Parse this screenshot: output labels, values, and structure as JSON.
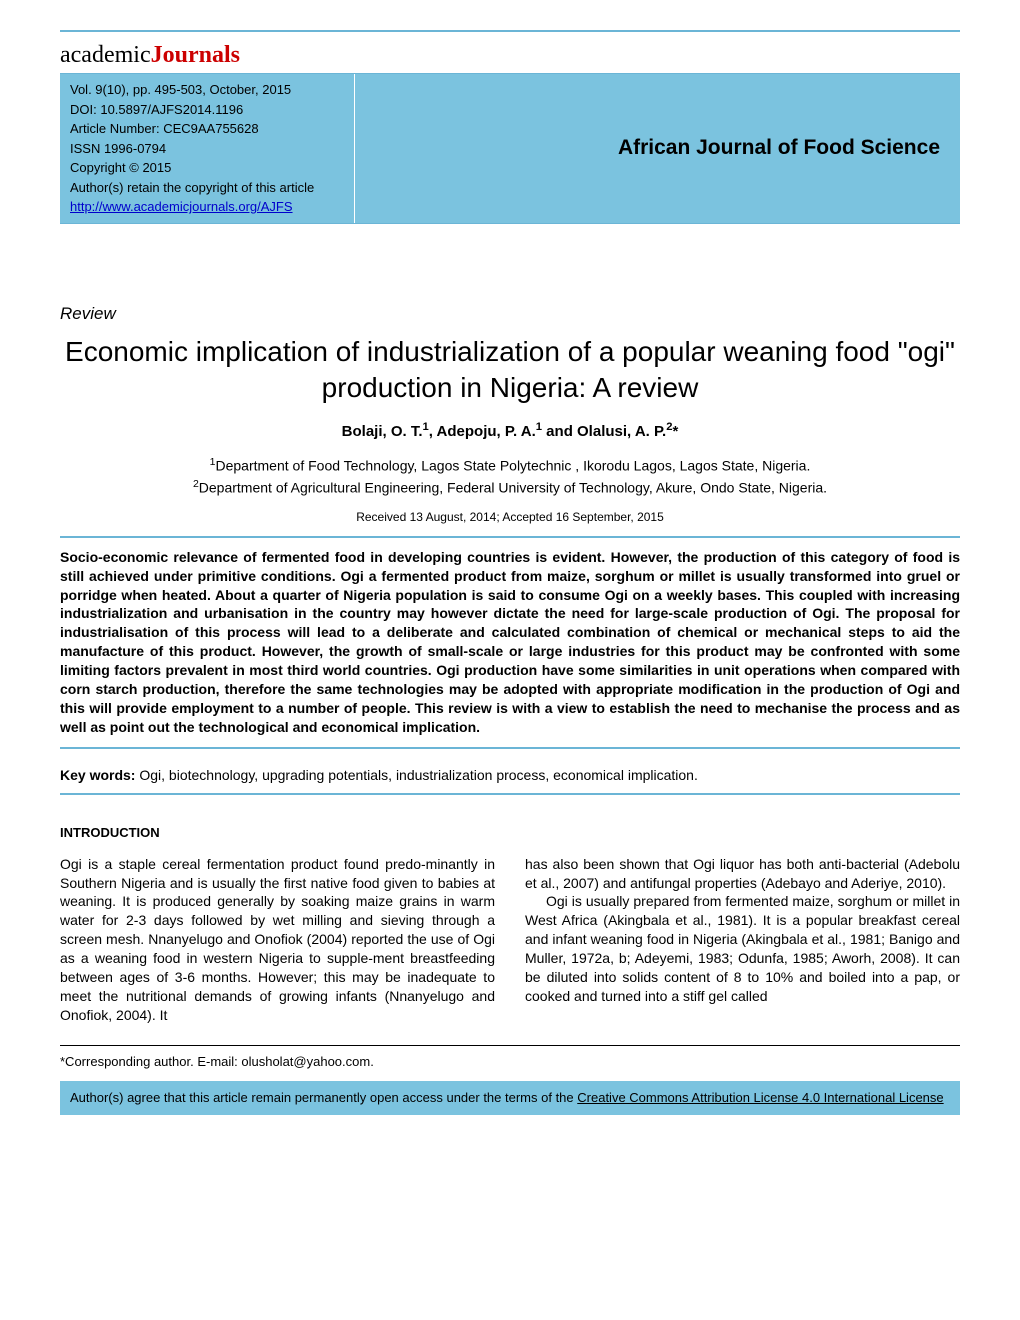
{
  "logo": {
    "part1": "academic",
    "part2": "Journals"
  },
  "meta": {
    "vol": "Vol. 9(10), pp. 495-503, October, 2015",
    "doi": "DOI: 10.5897/AJFS2014.1196",
    "article_number": "Article Number: CEC9AA755628",
    "issn": "ISSN 1996-0794",
    "copyright": "Copyright © 2015",
    "rights": "Author(s) retain the copyright of this article",
    "url": "http://www.academicjournals.org/AJFS"
  },
  "journal_title": "African Journal of Food Science",
  "article_type": "Review",
  "title": "Economic implication of industrialization of a popular weaning food \"ogi\" production in Nigeria: A review",
  "authors_html": "Bolaji, O. T.<sup>1</sup>, Adepoju, P. A.<sup>1</sup> and Olalusi, A. P.<sup>2</sup>*",
  "affil1": "<sup>1</sup>Department of Food Technology, Lagos State Polytechnic , Ikorodu Lagos, Lagos State, Nigeria.",
  "affil2": "<sup>2</sup>Department of Agricultural Engineering, Federal University of Technology, Akure, Ondo State, Nigeria.",
  "dates": "Received 13 August, 2014; Accepted 16 September, 2015",
  "abstract": "Socio-economic relevance of fermented food in developing countries is evident. However, the production of this category of food is still achieved under primitive conditions. Ogi a fermented product from maize, sorghum or millet is usually transformed into gruel or porridge when heated. About a quarter of Nigeria population is said to consume Ogi on a weekly bases. This coupled with increasing industrialization and urbanisation in the country may however dictate the need for large-scale production of Ogi. The proposal for industrialisation of this process will lead to a deliberate and calculated combination of chemical or mechanical steps to aid the manufacture of this product. However, the growth of small-scale or large industries for this product may be confronted with some limiting factors prevalent in most third world countries. Ogi production have some similarities in unit operations when compared with corn starch production, therefore the same technologies may be adopted with appropriate modification in the production of Ogi and this will provide employment to a number of people. This review is with a view to establish the need to mechanise the process and as well as point out the technological and economical implication.",
  "keywords_label": "Key words:",
  "keywords": " Ogi, biotechnology, upgrading potentials, industrialization process, economical implication.",
  "section_head": "INTRODUCTION",
  "col1": "Ogi is a staple cereal fermentation product found predo-minantly in Southern Nigeria and is usually the first native food given to babies at weaning. It is produced generally by soaking maize grains in warm water for 2-3 days followed by wet milling and sieving through a screen mesh. Nnanyelugo and Onofiok (2004) reported the use of Ogi as a weaning food in western Nigeria to supple-ment breastfeeding between ages of 3-6 months. However; this may be inadequate to meet the nutritional demands of growing infants (Nnanyelugo and Onofiok, 2004). It",
  "col2_p1": "has also been shown that Ogi liquor has both anti-bacterial (Adebolu et al., 2007) and antifungal properties (Adebayo and Aderiye, 2010).",
  "col2_p2": "Ogi is usually prepared from fermented maize, sorghum or millet in West Africa (Akingbala et al., 1981). It is a popular breakfast cereal and infant weaning food in Nigeria (Akingbala et al., 1981; Banigo and Muller, 1972a, b; Adeyemi, 1983; Odunfa, 1985; Aworh, 2008). It can be diluted into solids content of 8 to 10% and boiled into a pap, or cooked and turned into a stiff gel called",
  "corresponding": "*Corresponding author. E-mail: olusholat@yahoo.com.",
  "license_pre": "Author(s) agree that this article remain permanently open access under the terms of the ",
  "license_link": "Creative Commons Attribution License 4.0 International License",
  "colors": {
    "accent": "#6bb5d6",
    "header_bg": "#7bc3df",
    "logo_red": "#c00"
  }
}
